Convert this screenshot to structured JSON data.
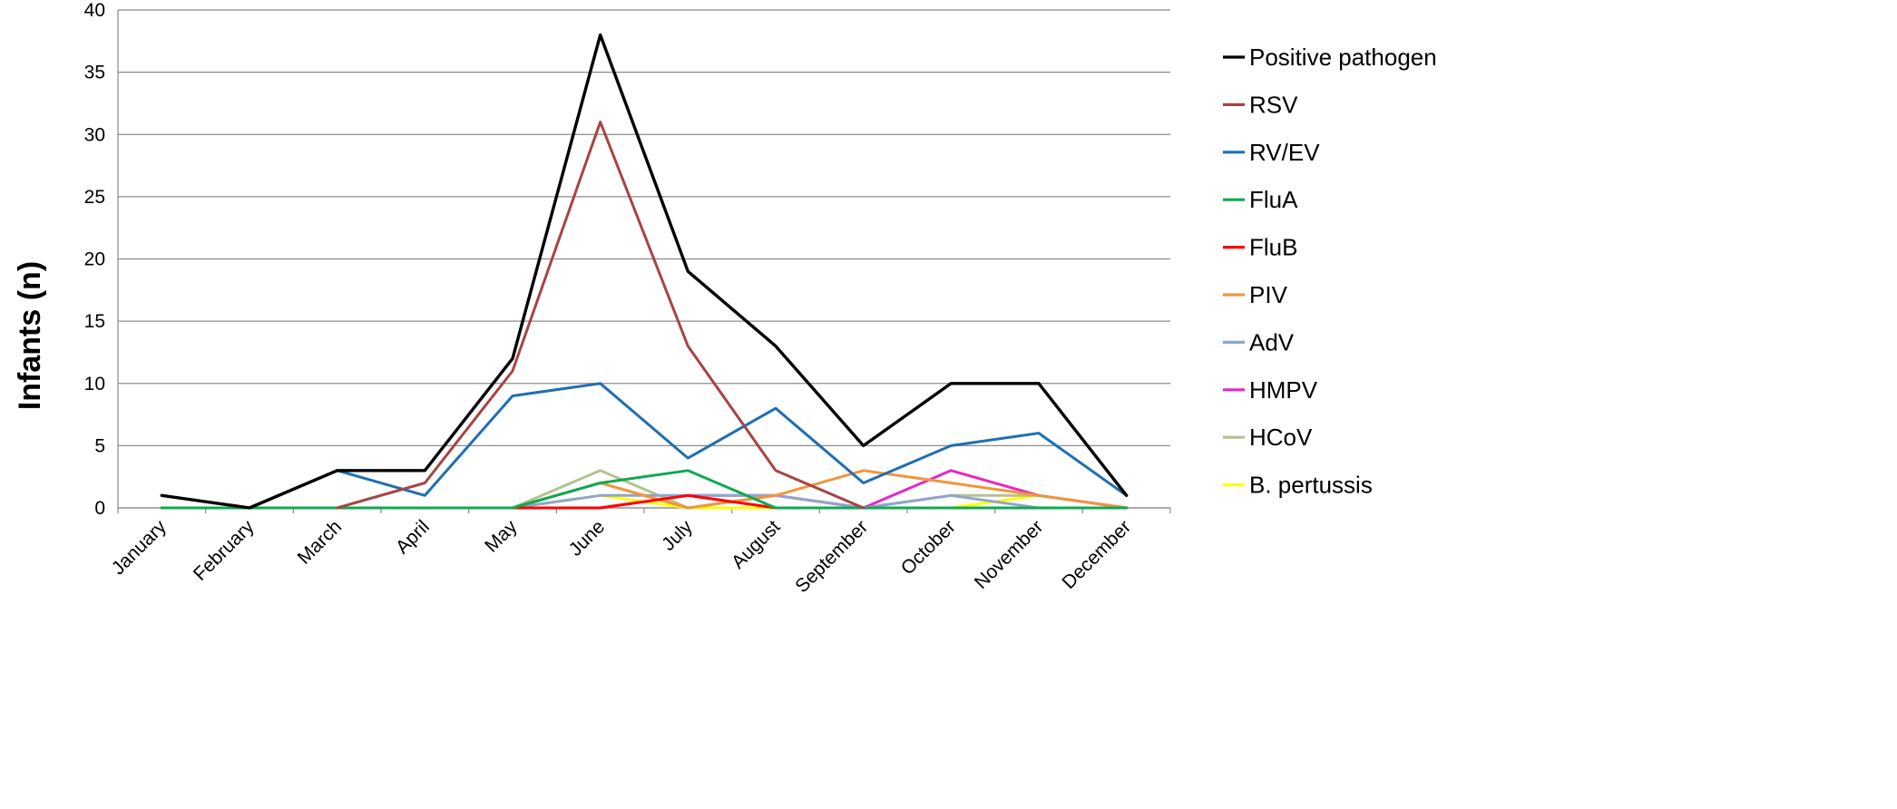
{
  "chart_data": {
    "type": "line",
    "title": "",
    "xlabel": "",
    "ylabel": "Infants (n)",
    "ylim": [
      0,
      40
    ],
    "yticks": [
      0,
      5,
      10,
      15,
      20,
      25,
      30,
      35,
      40
    ],
    "grid": "horizontal",
    "legend_position": "right",
    "categories": [
      "January",
      "February",
      "March",
      "April",
      "May",
      "June",
      "July",
      "August",
      "September",
      "October",
      "November",
      "December"
    ],
    "series": [
      {
        "name": "Positive pathogen",
        "color": "#000000",
        "values": [
          1,
          0,
          3,
          3,
          12,
          38,
          19,
          13,
          5,
          10,
          10,
          1
        ]
      },
      {
        "name": "RSV",
        "color": "#a84442",
        "values": [
          null,
          null,
          0,
          2,
          11,
          31,
          13,
          3,
          0,
          null,
          null,
          null
        ]
      },
      {
        "name": "RV/EV",
        "color": "#1f6fb2",
        "values": [
          1,
          0,
          3,
          1,
          9,
          10,
          4,
          8,
          2,
          5,
          6,
          1
        ]
      },
      {
        "name": "FluA",
        "color": "#10a851",
        "values": [
          0,
          0,
          0,
          0,
          0,
          2,
          3,
          0,
          0,
          0,
          0,
          0
        ]
      },
      {
        "name": "FluB",
        "color": "#ff0000",
        "values": [
          0,
          0,
          0,
          0,
          0,
          0,
          1,
          0,
          0,
          0,
          0,
          0
        ]
      },
      {
        "name": "PIV",
        "color": "#f0953f",
        "values": [
          0,
          0,
          0,
          0,
          0,
          2,
          0,
          1,
          3,
          2,
          1,
          0
        ]
      },
      {
        "name": "AdV",
        "color": "#8ea6cc",
        "values": [
          0,
          0,
          0,
          0,
          0,
          1,
          1,
          1,
          0,
          1,
          0,
          0
        ]
      },
      {
        "name": "HMPV",
        "color": "#e528c3",
        "values": [
          0,
          0,
          0,
          0,
          0,
          0,
          1,
          1,
          0,
          3,
          1,
          0
        ]
      },
      {
        "name": "HCoV",
        "color": "#b4c290",
        "values": [
          0,
          0,
          0,
          0,
          0,
          3,
          0,
          1,
          0,
          1,
          1,
          0
        ]
      },
      {
        "name": "B. pertussis",
        "color": "#ffff00",
        "values": [
          0,
          0,
          0,
          0,
          0,
          1,
          0,
          0,
          0,
          0,
          1,
          0
        ]
      }
    ]
  }
}
